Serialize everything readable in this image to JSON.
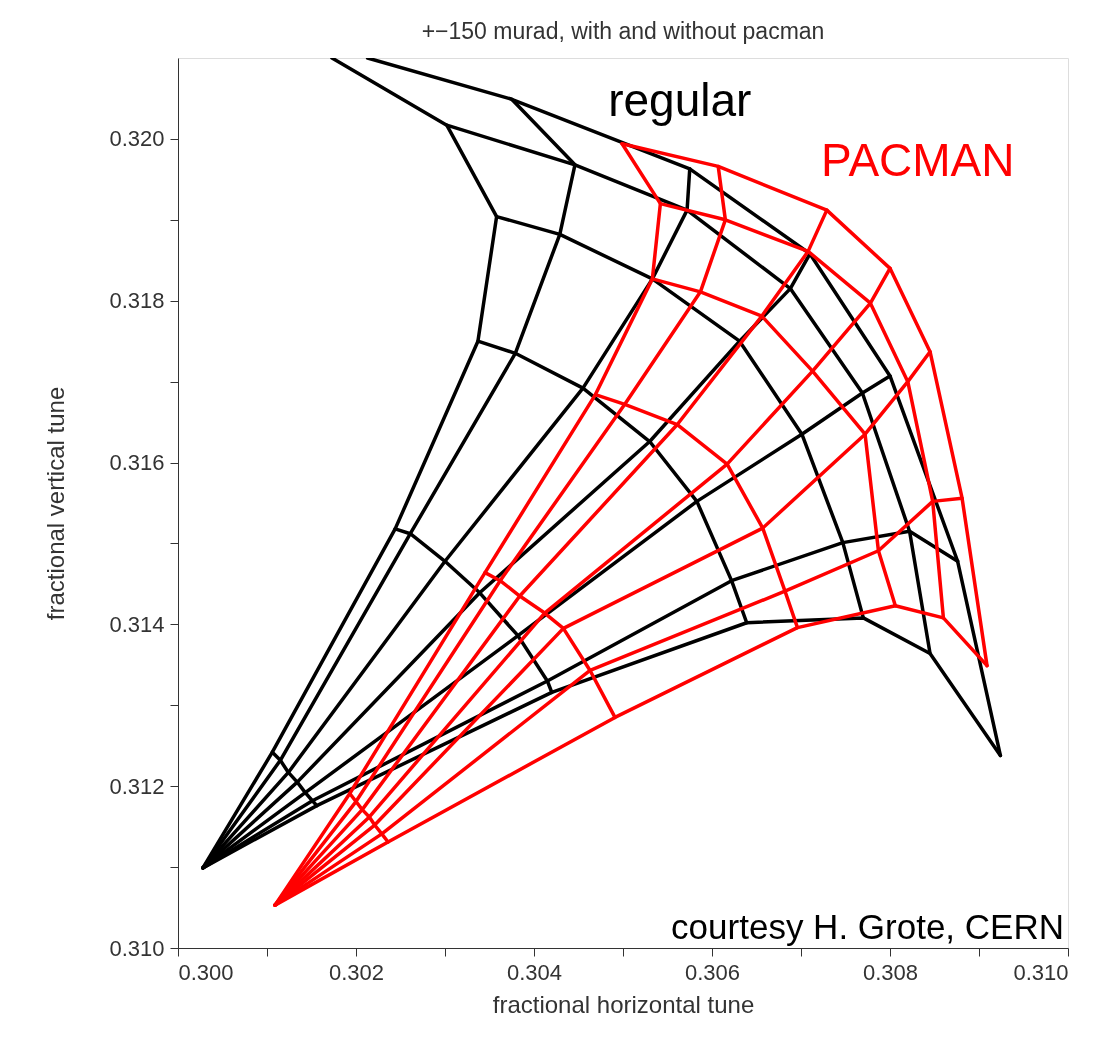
{
  "chart_data": {
    "type": "line",
    "title": "+−150 murad, with and without pacman",
    "xlabel": "fractional horizontal tune",
    "ylabel": "fractional vertical tune",
    "xlim": [
      0.3,
      0.31
    ],
    "ylim": [
      0.31,
      0.321
    ],
    "xticks": [
      {
        "value": 0.3,
        "label": "0.300"
      },
      {
        "value": 0.301,
        "label": null
      },
      {
        "value": 0.302,
        "label": "0.302"
      },
      {
        "value": 0.303,
        "label": null
      },
      {
        "value": 0.304,
        "label": "0.304"
      },
      {
        "value": 0.305,
        "label": null
      },
      {
        "value": 0.306,
        "label": "0.306"
      },
      {
        "value": 0.307,
        "label": null
      },
      {
        "value": 0.308,
        "label": "0.308"
      },
      {
        "value": 0.309,
        "label": null
      },
      {
        "value": 0.31,
        "label": "0.310"
      }
    ],
    "yticks": [
      {
        "value": 0.31,
        "label": "0.310"
      },
      {
        "value": 0.311,
        "label": null
      },
      {
        "value": 0.312,
        "label": "0.312"
      },
      {
        "value": 0.313,
        "label": null
      },
      {
        "value": 0.314,
        "label": "0.314"
      },
      {
        "value": 0.315,
        "label": null
      },
      {
        "value": 0.316,
        "label": "0.316"
      },
      {
        "value": 0.317,
        "label": null
      },
      {
        "value": 0.318,
        "label": "0.318"
      },
      {
        "value": 0.319,
        "label": null
      },
      {
        "value": 0.32,
        "label": "0.320"
      }
    ],
    "grid": false,
    "annotations": [
      "courtesy H. Grote, CERN"
    ],
    "series": [
      {
        "color": "#000000",
        "x": [
          0.30028,
          0.30106,
          0.30244,
          0.30337,
          0.30358,
          0.30302,
          0.30173
        ],
        "values": [
          0.31099,
          0.31242,
          0.31518,
          0.3175,
          0.31904,
          0.32017,
          0.321
        ]
      },
      {
        "color": "#000000",
        "x": [
          0.30028,
          0.30115,
          0.30261,
          0.30379,
          0.30429,
          0.30446,
          0.30375
        ],
        "values": [
          0.31099,
          0.31232,
          0.31512,
          0.31735,
          0.31882,
          0.31968,
          0.32049
        ]
      },
      {
        "color": "#000000",
        "x": [
          0.30028,
          0.30124,
          0.303,
          0.30455,
          0.30533,
          0.30572,
          0.30575
        ],
        "values": [
          0.31099,
          0.31217,
          0.31478,
          0.31692,
          0.31827,
          0.31912,
          0.31963
        ]
      },
      {
        "color": "#000000",
        "x": [
          0.30028,
          0.30134,
          0.30339,
          0.3053,
          0.30631,
          0.30688,
          0.3071
        ],
        "values": [
          0.31099,
          0.31205,
          0.31439,
          0.31626,
          0.3175,
          0.31815,
          0.31858
        ]
      },
      {
        "color": "#000000",
        "x": [
          0.30028,
          0.30143,
          0.30382,
          0.30583,
          0.30701,
          0.30769,
          0.308
        ],
        "values": [
          0.31099,
          0.31192,
          0.31386,
          0.31552,
          0.31635,
          0.31686,
          0.31707
        ]
      },
      {
        "color": "#000000",
        "x": [
          0.30028,
          0.30151,
          0.30415,
          0.30622,
          0.30747,
          0.30822,
          0.30876
        ],
        "values": [
          0.31099,
          0.31182,
          0.3133,
          0.31454,
          0.31501,
          0.31515,
          0.31478
        ]
      },
      {
        "color": "#000000",
        "x": [
          0.30028,
          0.30156,
          0.3042,
          0.30639,
          0.3077,
          0.30845,
          0.30924
        ],
        "values": [
          0.31099,
          0.31176,
          0.31316,
          0.31402,
          0.31408,
          0.31364,
          0.31238
        ]
      },
      {
        "color": "#000000",
        "x": [
          0.30106,
          0.30115,
          0.30124,
          0.30134,
          0.30143,
          0.30151,
          0.30156
        ],
        "values": [
          0.31242,
          0.31232,
          0.31217,
          0.31205,
          0.31192,
          0.31182,
          0.31176
        ]
      },
      {
        "color": "#000000",
        "x": [
          0.30244,
          0.30261,
          0.303,
          0.30339,
          0.30382,
          0.30415,
          0.3042
        ],
        "values": [
          0.31518,
          0.31512,
          0.31478,
          0.31439,
          0.31386,
          0.3133,
          0.31316
        ]
      },
      {
        "color": "#000000",
        "x": [
          0.30337,
          0.30379,
          0.30455,
          0.3053,
          0.30583,
          0.30622,
          0.30639
        ],
        "values": [
          0.3175,
          0.31735,
          0.31692,
          0.31626,
          0.31552,
          0.31454,
          0.31402
        ]
      },
      {
        "color": "#000000",
        "x": [
          0.30358,
          0.30429,
          0.30533,
          0.30631,
          0.30701,
          0.30747,
          0.3077
        ],
        "values": [
          0.31904,
          0.31882,
          0.31827,
          0.3175,
          0.31635,
          0.31501,
          0.31408
        ]
      },
      {
        "color": "#000000",
        "x": [
          0.30302,
          0.30446,
          0.30572,
          0.30688,
          0.30769,
          0.30822,
          0.30845
        ],
        "values": [
          0.32017,
          0.31968,
          0.31912,
          0.31815,
          0.31686,
          0.31515,
          0.31364
        ]
      },
      {
        "name": "regular",
        "color": "#000000",
        "x": [
          0.30213,
          0.30375,
          0.30575,
          0.3071,
          0.308,
          0.30876,
          0.30924
        ],
        "values": [
          0.321,
          0.32049,
          0.31963,
          0.31858,
          0.31707,
          0.31478,
          0.31238
        ]
      },
      {
        "color": "#ff0000",
        "x": [
          0.30109,
          0.30193,
          0.30345,
          0.30469,
          0.30533,
          0.30542,
          0.30499
        ],
        "values": [
          0.31053,
          0.31191,
          0.31464,
          0.31684,
          0.31827,
          0.3192,
          0.31994
        ]
      },
      {
        "color": "#ff0000",
        "x": [
          0.30109,
          0.302,
          0.30362,
          0.30502,
          0.30587,
          0.30615,
          0.30607
        ],
        "values": [
          0.31053,
          0.31181,
          0.31454,
          0.31672,
          0.31811,
          0.319,
          0.31966
        ]
      },
      {
        "color": "#ff0000",
        "x": [
          0.30109,
          0.30207,
          0.30384,
          0.30561,
          0.30656,
          0.30708,
          0.30729
        ],
        "values": [
          0.31053,
          0.31171,
          0.31435,
          0.31647,
          0.31781,
          0.31861,
          0.31912
        ]
      },
      {
        "color": "#ff0000",
        "x": [
          0.30109,
          0.30215,
          0.30412,
          0.30617,
          0.30713,
          0.30778,
          0.308
        ],
        "values": [
          0.31053,
          0.31162,
          0.31414,
          0.31598,
          0.31713,
          0.31797,
          0.3184
        ]
      },
      {
        "color": "#ff0000",
        "x": [
          0.30109,
          0.30221,
          0.30433,
          0.30657,
          0.30772,
          0.3082,
          0.30845
        ],
        "values": [
          0.31053,
          0.31152,
          0.31395,
          0.31519,
          0.31635,
          0.317,
          0.31737
        ]
      },
      {
        "color": "#ff0000",
        "x": [
          0.30109,
          0.30229,
          0.30463,
          0.30682,
          0.30787,
          0.30848,
          0.30881
        ],
        "values": [
          0.31053,
          0.31141,
          0.31343,
          0.31441,
          0.31491,
          0.31552,
          0.31556
        ]
      },
      {
        "color": "#ff0000",
        "x": [
          0.30109,
          0.30236,
          0.30491,
          0.30696,
          0.30806,
          0.3086,
          0.30909
        ],
        "values": [
          0.31053,
          0.31131,
          0.31285,
          0.31396,
          0.31423,
          0.31408,
          0.31349
        ]
      },
      {
        "color": "#ff0000",
        "x": [
          0.30193,
          0.302,
          0.30207,
          0.30215,
          0.30221,
          0.30229,
          0.30236
        ],
        "values": [
          0.31191,
          0.31181,
          0.31171,
          0.31162,
          0.31152,
          0.31141,
          0.31131
        ]
      },
      {
        "color": "#ff0000",
        "x": [
          0.30345,
          0.30362,
          0.30384,
          0.30412,
          0.30433,
          0.30463,
          0.30491
        ],
        "values": [
          0.31464,
          0.31454,
          0.31435,
          0.31414,
          0.31395,
          0.31343,
          0.31285
        ]
      },
      {
        "color": "#ff0000",
        "x": [
          0.30469,
          0.30502,
          0.30561,
          0.30617,
          0.30657,
          0.30682,
          0.30696
        ],
        "values": [
          0.31684,
          0.31672,
          0.31647,
          0.31598,
          0.31519,
          0.31441,
          0.31396
        ]
      },
      {
        "color": "#ff0000",
        "x": [
          0.30533,
          0.30587,
          0.30656,
          0.30713,
          0.30772,
          0.30787,
          0.30806
        ],
        "values": [
          0.31827,
          0.31811,
          0.31781,
          0.31713,
          0.31635,
          0.31491,
          0.31423
        ]
      },
      {
        "color": "#ff0000",
        "x": [
          0.30542,
          0.30615,
          0.30708,
          0.30778,
          0.3082,
          0.30848,
          0.3086
        ],
        "values": [
          0.3192,
          0.319,
          0.31861,
          0.31797,
          0.317,
          0.31552,
          0.31408
        ]
      },
      {
        "name": "PACMAN",
        "color": "#ff0000",
        "x": [
          0.30499,
          0.30607,
          0.30729,
          0.308,
          0.30845,
          0.30881,
          0.30909
        ],
        "values": [
          0.31994,
          0.31966,
          0.31912,
          0.3184,
          0.31737,
          0.31556,
          0.31349
        ]
      }
    ]
  }
}
